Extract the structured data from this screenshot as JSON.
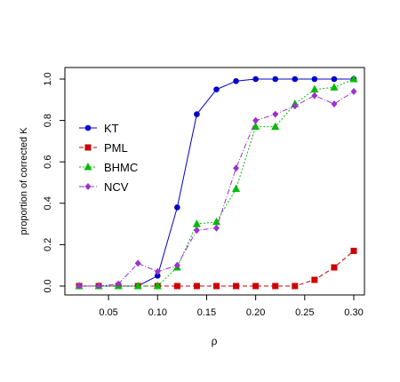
{
  "chart_data": {
    "type": "line",
    "xlabel": "ρ",
    "ylabel": "proportion of corrected K",
    "xlim": [
      0.02,
      0.3
    ],
    "ylim": [
      0.0,
      1.0
    ],
    "x_ticks": [
      "0.05",
      "0.10",
      "0.15",
      "0.20",
      "0.25",
      "0.30"
    ],
    "y_ticks": [
      "0.0",
      "0.2",
      "0.4",
      "0.6",
      "0.8",
      "1.0"
    ],
    "grid": false,
    "legend_position": "left-middle",
    "x": [
      0.02,
      0.04,
      0.06,
      0.08,
      0.1,
      0.12,
      0.14,
      0.16,
      0.18,
      0.2,
      0.22,
      0.24,
      0.26,
      0.28,
      0.3
    ],
    "series": [
      {
        "name": "KT",
        "color": "#0000cc",
        "marker": "circle",
        "line": "solid",
        "values": [
          0,
          0,
          0,
          0,
          0.05,
          0.38,
          0.83,
          0.95,
          0.99,
          1.0,
          1.0,
          1.0,
          1.0,
          1.0,
          1.0
        ]
      },
      {
        "name": "PML",
        "color": "#cc0000",
        "marker": "square",
        "line": "dashed",
        "values": [
          0,
          0,
          0,
          0,
          0,
          0,
          0,
          0,
          0,
          0,
          0,
          0,
          0.03,
          0.09,
          0.17
        ]
      },
      {
        "name": "BHMC",
        "color": "#00bb00",
        "marker": "triangle",
        "line": "dotted",
        "values": [
          0,
          0,
          0,
          0,
          0,
          0.09,
          0.3,
          0.31,
          0.47,
          0.77,
          0.77,
          0.88,
          0.95,
          0.96,
          1.0
        ]
      },
      {
        "name": "NCV",
        "color": "#9933cc",
        "marker": "diamond",
        "line": "dashdot",
        "values": [
          0,
          0,
          0.01,
          0.11,
          0.07,
          0.1,
          0.27,
          0.28,
          0.57,
          0.8,
          0.83,
          0.87,
          0.92,
          0.88,
          0.94
        ]
      }
    ]
  }
}
